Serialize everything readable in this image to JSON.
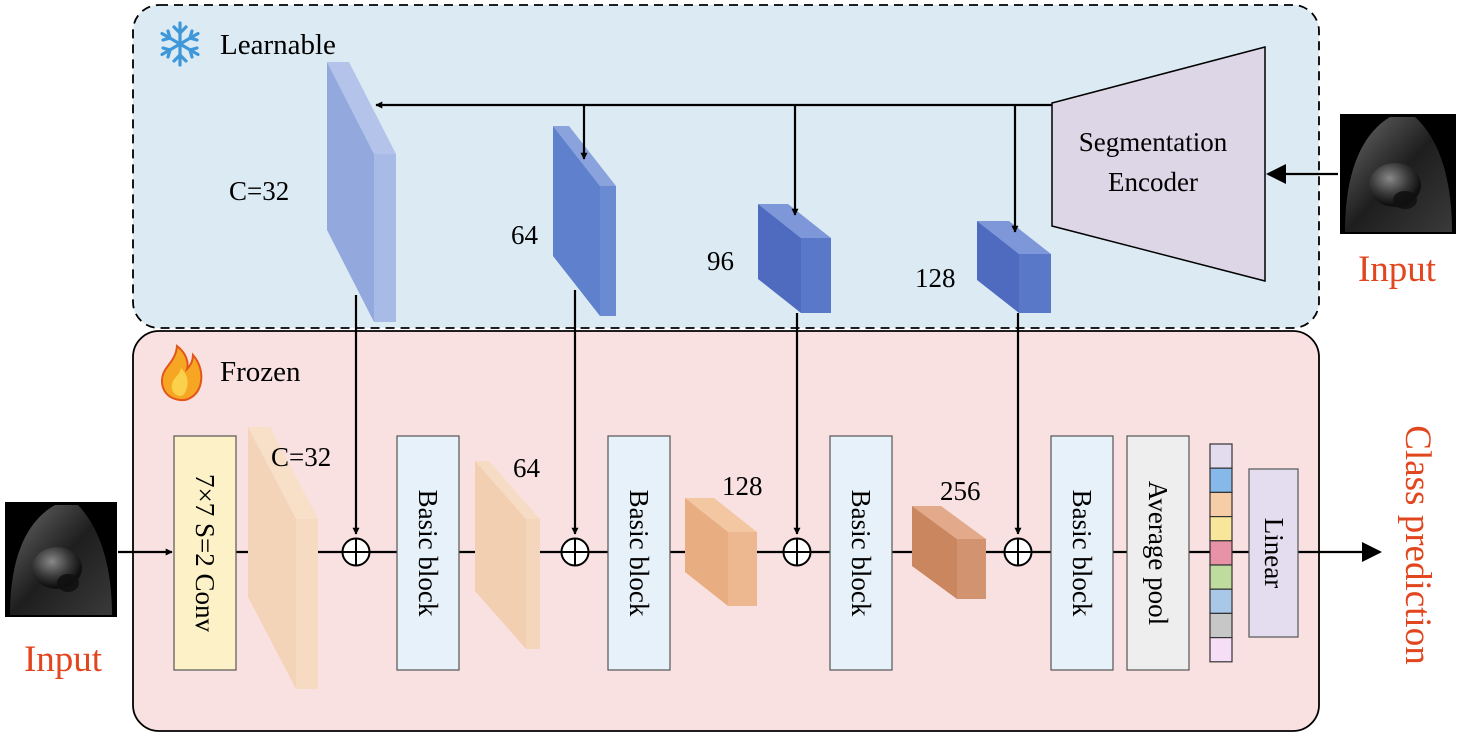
{
  "learnable_region": {
    "label": "Learnable",
    "icon": "snowflake-icon"
  },
  "frozen_region": {
    "label": "Frozen",
    "icon": "flame-icon"
  },
  "segmentation_encoder": {
    "line1": "Segmentation",
    "line2": "Encoder"
  },
  "inputs": {
    "right_label": "Input",
    "left_label": "Input"
  },
  "encoder_features": [
    {
      "label": "C=32"
    },
    {
      "label": "64"
    },
    {
      "label": "96"
    },
    {
      "label": "128"
    }
  ],
  "classifier": {
    "conv_label": "7×7 S=2 Conv",
    "feature_labels": [
      "C=32",
      "64",
      "128",
      "256"
    ],
    "basic_block_label": "Basic block",
    "average_pool_label": "Average pool",
    "linear_label": "Linear",
    "output_label": "Class prediction"
  },
  "colors": {
    "learnable_bg": "#dcebf3",
    "frozen_bg": "#f9e1e1",
    "encoder_fill": "#ddd6e6",
    "seg_feature_light": "#93a8dc",
    "seg_feature_dark": "#4f72c4",
    "cls_feature_light": "#f4d4b8",
    "cls_feature_dark": "#d08a5e",
    "conv_fill": "#fdf1c8",
    "block_fill": "#e7f1f9",
    "pool_fill": "#eeeeee",
    "linear_fill": "#e4dcef",
    "accent_red": "#e2461e"
  },
  "feature_vector_colors": [
    "#e3dcef",
    "#86b9ea",
    "#f6cda7",
    "#f8e79a",
    "#e892a6",
    "#bfdc9f",
    "#a9c8e7",
    "#c7c7c7",
    "#f6def6"
  ]
}
